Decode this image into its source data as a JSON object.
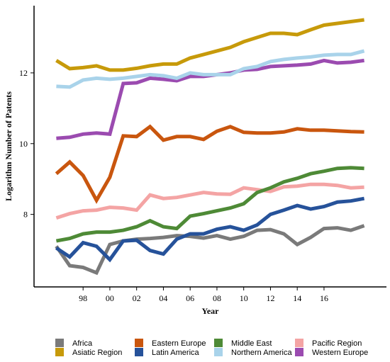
{
  "chart_data": {
    "type": "line",
    "xlabel": "Year",
    "ylabel": "Logarithm Number of Patents",
    "x": [
      1996,
      1997,
      1998,
      1999,
      2000,
      2001,
      2002,
      2003,
      2004,
      2005,
      2006,
      2007,
      2008,
      2009,
      2010,
      2011,
      2012,
      2013,
      2014,
      2015,
      2016,
      2017,
      2018,
      2019
    ],
    "xlim": [
      1994.6,
      2020.4
    ],
    "ylim": [
      5.95,
      13.9
    ],
    "xticks": [
      1998,
      2000,
      2002,
      2004,
      2006,
      2008,
      2010,
      2012,
      2014,
      2016
    ],
    "xtick_labels": [
      "98",
      "00",
      "02",
      "04",
      "06",
      "08",
      "10",
      "12",
      "14",
      "16"
    ],
    "yticks": [
      8,
      10,
      12
    ],
    "ytick_labels": [
      "8",
      "10",
      "12"
    ],
    "grid": false,
    "legend_position": "bottom",
    "series": [
      {
        "name": "Africa",
        "color": "#7a7a7a",
        "values": [
          7.1,
          6.55,
          6.5,
          6.35,
          7.15,
          7.25,
          7.3,
          7.32,
          7.35,
          7.4,
          7.38,
          7.33,
          7.4,
          7.3,
          7.38,
          7.55,
          7.57,
          7.45,
          7.15,
          7.35,
          7.6,
          7.62,
          7.55,
          7.68
        ]
      },
      {
        "name": "Asiatic Region",
        "color": "#c79a0a",
        "values": [
          12.35,
          12.12,
          12.15,
          12.2,
          12.08,
          12.08,
          12.13,
          12.2,
          12.25,
          12.25,
          12.42,
          12.52,
          12.62,
          12.72,
          12.88,
          13.0,
          13.12,
          13.12,
          13.08,
          13.22,
          13.35,
          13.4,
          13.45,
          13.5
        ]
      },
      {
        "name": "Eastern Europe",
        "color": "#c9560e",
        "values": [
          9.15,
          9.48,
          9.1,
          8.4,
          9.05,
          10.22,
          10.2,
          10.48,
          10.1,
          10.2,
          10.2,
          10.12,
          10.35,
          10.48,
          10.32,
          10.3,
          10.3,
          10.33,
          10.42,
          10.38,
          10.38,
          10.36,
          10.34,
          10.33
        ]
      },
      {
        "name": "Latin America",
        "color": "#26529a",
        "values": [
          7.05,
          6.8,
          7.2,
          7.1,
          6.72,
          7.25,
          7.27,
          6.98,
          6.88,
          7.3,
          7.45,
          7.45,
          7.58,
          7.65,
          7.55,
          7.7,
          8.0,
          8.12,
          8.25,
          8.15,
          8.22,
          8.35,
          8.38,
          8.45
        ]
      },
      {
        "name": "Middle East",
        "color": "#4e8a36",
        "values": [
          7.25,
          7.32,
          7.45,
          7.5,
          7.5,
          7.55,
          7.65,
          7.82,
          7.65,
          7.6,
          7.95,
          8.02,
          8.1,
          8.18,
          8.3,
          8.62,
          8.75,
          8.92,
          9.02,
          9.15,
          9.22,
          9.3,
          9.32,
          9.3
        ]
      },
      {
        "name": "Northern America",
        "color": "#a9d3ea",
        "values": [
          11.62,
          11.6,
          11.8,
          11.85,
          11.82,
          11.85,
          11.9,
          11.95,
          11.92,
          11.85,
          12.0,
          11.95,
          11.95,
          11.95,
          12.12,
          12.18,
          12.32,
          12.38,
          12.42,
          12.45,
          12.5,
          12.52,
          12.52,
          12.62
        ]
      },
      {
        "name": "Pacific Region",
        "color": "#f4a4a4",
        "values": [
          7.9,
          8.02,
          8.1,
          8.12,
          8.2,
          8.18,
          8.12,
          8.55,
          8.45,
          8.48,
          8.55,
          8.62,
          8.58,
          8.57,
          8.75,
          8.7,
          8.65,
          8.78,
          8.8,
          8.85,
          8.85,
          8.82,
          8.75,
          8.77
        ]
      },
      {
        "name": "Western Europe",
        "color": "#9b4bb0",
        "values": [
          10.15,
          10.18,
          10.27,
          10.3,
          10.27,
          11.7,
          11.72,
          11.85,
          11.82,
          11.78,
          11.9,
          11.9,
          11.95,
          12.0,
          12.08,
          12.1,
          12.18,
          12.2,
          12.22,
          12.25,
          12.35,
          12.28,
          12.3,
          12.35
        ]
      }
    ]
  }
}
